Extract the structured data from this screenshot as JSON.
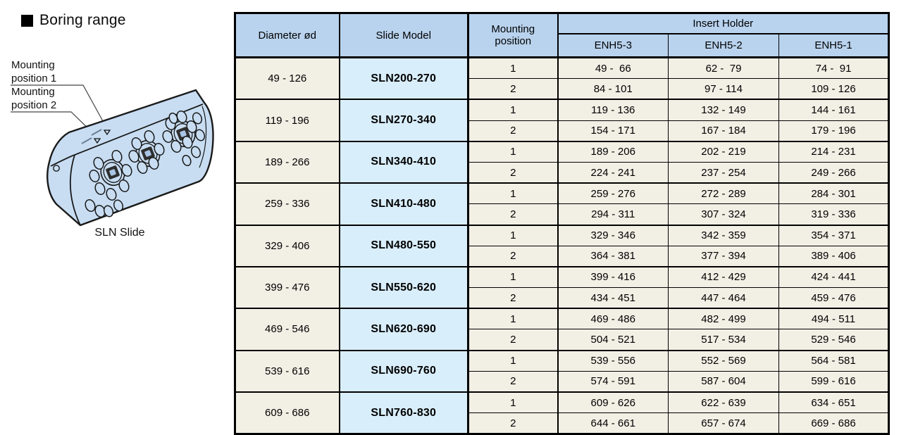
{
  "title": "Boring range",
  "figure": {
    "label_position_1": "Mounting position 1",
    "label_position_2": "Mounting position 2",
    "caption": "SLN Slide"
  },
  "table": {
    "headers": {
      "diameter": "Diameter ød",
      "slide_model": "Slide Model",
      "mounting_position": "Mounting\nposition",
      "insert_holder": "Insert Holder",
      "holders": [
        "ENH5-3",
        "ENH5-2",
        "ENH5-1"
      ]
    },
    "groups": [
      {
        "diameter": "49 - 126",
        "model": "SLN200-270",
        "rows": [
          {
            "position": "1",
            "ranges": [
              "49 -  66",
              "62 -  79",
              "74 -  91"
            ]
          },
          {
            "position": "2",
            "ranges": [
              "84 - 101",
              "97 - 114",
              "109 - 126"
            ]
          }
        ]
      },
      {
        "diameter": "119 - 196",
        "model": "SLN270-340",
        "rows": [
          {
            "position": "1",
            "ranges": [
              "119 - 136",
              "132 - 149",
              "144 - 161"
            ]
          },
          {
            "position": "2",
            "ranges": [
              "154 - 171",
              "167 - 184",
              "179 - 196"
            ]
          }
        ]
      },
      {
        "diameter": "189 - 266",
        "model": "SLN340-410",
        "rows": [
          {
            "position": "1",
            "ranges": [
              "189 - 206",
              "202 - 219",
              "214 - 231"
            ]
          },
          {
            "position": "2",
            "ranges": [
              "224 - 241",
              "237 - 254",
              "249 - 266"
            ]
          }
        ]
      },
      {
        "diameter": "259 - 336",
        "model": "SLN410-480",
        "rows": [
          {
            "position": "1",
            "ranges": [
              "259 - 276",
              "272 - 289",
              "284 - 301"
            ]
          },
          {
            "position": "2",
            "ranges": [
              "294 - 311",
              "307 - 324",
              "319 - 336"
            ]
          }
        ]
      },
      {
        "diameter": "329 - 406",
        "model": "SLN480-550",
        "rows": [
          {
            "position": "1",
            "ranges": [
              "329 - 346",
              "342 - 359",
              "354 - 371"
            ]
          },
          {
            "position": "2",
            "ranges": [
              "364 - 381",
              "377 - 394",
              "389 - 406"
            ]
          }
        ]
      },
      {
        "diameter": "399 - 476",
        "model": "SLN550-620",
        "rows": [
          {
            "position": "1",
            "ranges": [
              "399 - 416",
              "412 - 429",
              "424 - 441"
            ]
          },
          {
            "position": "2",
            "ranges": [
              "434 - 451",
              "447 - 464",
              "459 - 476"
            ]
          }
        ]
      },
      {
        "diameter": "469 - 546",
        "model": "SLN620-690",
        "rows": [
          {
            "position": "1",
            "ranges": [
              "469 - 486",
              "482 - 499",
              "494 - 511"
            ]
          },
          {
            "position": "2",
            "ranges": [
              "504 - 521",
              "517 - 534",
              "529 - 546"
            ]
          }
        ]
      },
      {
        "diameter": "539 - 616",
        "model": "SLN690-760",
        "rows": [
          {
            "position": "1",
            "ranges": [
              "539 - 556",
              "552 - 569",
              "564 - 581"
            ]
          },
          {
            "position": "2",
            "ranges": [
              "574 - 591",
              "587 - 604",
              "599 - 616"
            ]
          }
        ]
      },
      {
        "diameter": "609 - 686",
        "model": "SLN760-830",
        "rows": [
          {
            "position": "1",
            "ranges": [
              "609 - 626",
              "622 - 639",
              "634 - 651"
            ]
          },
          {
            "position": "2",
            "ranges": [
              "644 - 661",
              "657 - 674",
              "669 - 686"
            ]
          }
        ]
      }
    ]
  },
  "colors": {
    "header_blue": "#b9d3ee",
    "model_blue": "#d9eefb",
    "row_cream": "#f2efe5",
    "figure_blue": "#c8ddf2",
    "border_black": "#000000",
    "subrow_gray": "#777777"
  }
}
